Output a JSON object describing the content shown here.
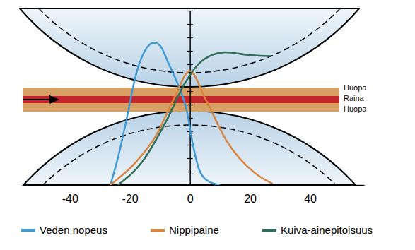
{
  "chart_data": {
    "type": "line",
    "xlim": [
      -55,
      58
    ],
    "xticks": [
      -40,
      -20,
      0,
      20,
      40
    ],
    "ylim": [
      0,
      13
    ],
    "yticks": [
      0,
      1,
      2,
      3,
      4,
      5,
      6,
      7,
      8,
      9,
      10,
      11,
      12,
      13
    ],
    "tick_labels": "x",
    "grid": false,
    "legend": "bottom",
    "annotations": [
      "Huopa",
      "Raina",
      "Huopa"
    ],
    "series": [
      {
        "name": "Veden nopeus",
        "color": "#3d9ad6",
        "x": [
          -26.5,
          -24,
          -21,
          -18,
          -15,
          -12,
          -10,
          -7,
          -4,
          -1,
          1,
          3,
          6,
          10
        ],
        "values": [
          0,
          2,
          5,
          8.2,
          10,
          10.6,
          10.4,
          9,
          7.5,
          5.5,
          3,
          1.2,
          0.3,
          0
        ]
      },
      {
        "name": "Nippipaine",
        "color": "#d8843f",
        "x": [
          -26.6,
          -18,
          -11,
          -5.4,
          0,
          5.2,
          12.2,
          21.6,
          27.5
        ],
        "values": [
          0,
          1.7,
          3.8,
          6.4,
          8.5,
          6.4,
          3.3,
          0.9,
          0.1
        ]
      },
      {
        "name": "Kuiva-ainepitoisuus",
        "color": "#2f6e57",
        "x": [
          -24,
          -16,
          -7.8,
          -1.9,
          2.8,
          7.5,
          11.8,
          19.3,
          27
        ],
        "values": [
          0,
          1.7,
          4.8,
          7.5,
          9,
          9.7,
          9.9,
          9.7,
          9.6
        ]
      }
    ]
  }
}
